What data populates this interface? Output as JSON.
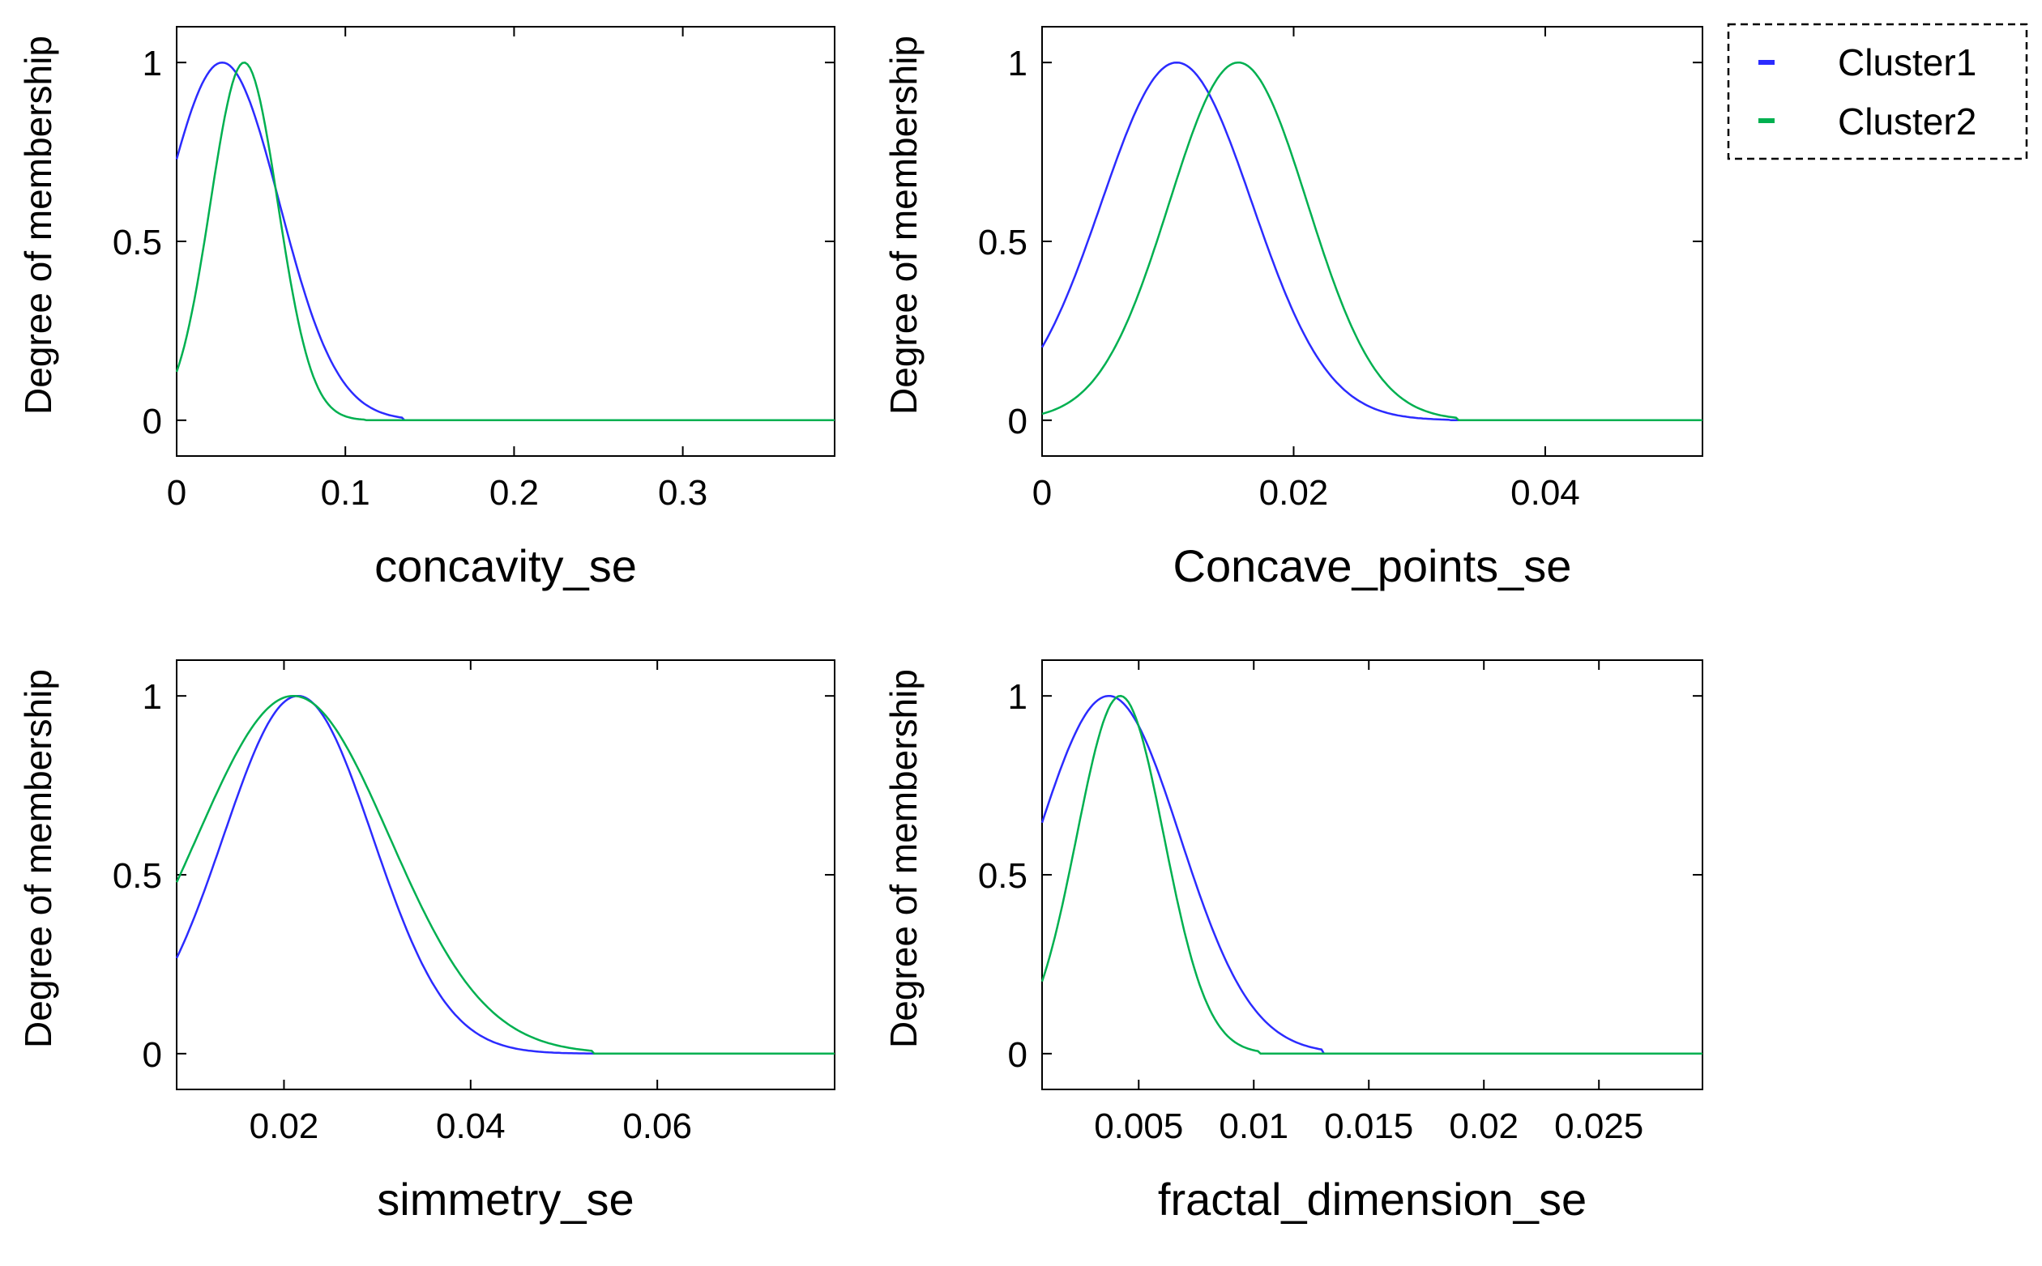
{
  "chart_data": [
    {
      "type": "line",
      "xlabel": "concavity_se",
      "ylabel": "Degree of membership",
      "xlim": [
        0,
        0.39
      ],
      "ylim": [
        -0.1,
        1.1
      ],
      "xticks": [
        0,
        0.1,
        0.2,
        0.3
      ],
      "xtick_labels": [
        "0",
        "0.1",
        "0.2",
        "0.3"
      ],
      "yticks": [
        0,
        0.5,
        1
      ],
      "ytick_labels": [
        "0",
        "0.5",
        "1"
      ],
      "series": [
        {
          "name": "Cluster1",
          "color": "#2b2bff",
          "mu": 0.027,
          "sigma": 0.034,
          "zero_beyond": 0.135
        },
        {
          "name": "Cluster2",
          "color": "#00b050",
          "mu": 0.04,
          "sigma": 0.02,
          "zero_beyond": 0.112
        }
      ]
    },
    {
      "type": "line",
      "xlabel": "Concave_points_se",
      "ylabel": "Degree of membership",
      "xlim": [
        0,
        0.0525
      ],
      "ylim": [
        -0.1,
        1.1
      ],
      "xticks": [
        0,
        0.02,
        0.04
      ],
      "xtick_labels": [
        "0",
        "0.02",
        "0.04"
      ],
      "yticks": [
        0,
        0.5,
        1
      ],
      "ytick_labels": [
        "0",
        "0.5",
        "1"
      ],
      "series": [
        {
          "name": "Cluster1",
          "color": "#2b2bff",
          "mu": 0.0107,
          "sigma": 0.006,
          "zero_beyond": 0.0325
        },
        {
          "name": "Cluster2",
          "color": "#00b050",
          "mu": 0.0156,
          "sigma": 0.0055,
          "zero_beyond": 0.033
        }
      ]
    },
    {
      "type": "line",
      "xlabel": "simmetry_se",
      "ylabel": "Degree of membership",
      "xlim": [
        0.0085,
        0.079
      ],
      "ylim": [
        -0.1,
        1.1
      ],
      "xticks": [
        0.02,
        0.04,
        0.06
      ],
      "xtick_labels": [
        "0.02",
        "0.04",
        "0.06"
      ],
      "yticks": [
        0,
        0.5,
        1
      ],
      "ytick_labels": [
        "0",
        "0.5",
        "1"
      ],
      "series": [
        {
          "name": "Cluster1",
          "color": "#2b2bff",
          "mu": 0.0215,
          "sigma": 0.008,
          "zero_beyond": 0.053
        },
        {
          "name": "Cluster2",
          "color": "#00b050",
          "mu": 0.021,
          "sigma": 0.0103,
          "zero_beyond": 0.053
        }
      ]
    },
    {
      "type": "line",
      "xlabel": "fractal_dimension_se",
      "ylabel": "Degree of membership",
      "xlim": [
        0.0008,
        0.0295
      ],
      "ylim": [
        -0.1,
        1.1
      ],
      "xticks": [
        0.005,
        0.01,
        0.015,
        0.02,
        0.025
      ],
      "xtick_labels": [
        "0.005",
        "0.01",
        "0.015",
        "0.02",
        "0.025"
      ],
      "yticks": [
        0,
        0.5,
        1
      ],
      "ytick_labels": [
        "0",
        "0.5",
        "1"
      ],
      "series": [
        {
          "name": "Cluster1",
          "color": "#2b2bff",
          "mu": 0.0037,
          "sigma": 0.0031,
          "zero_beyond": 0.013
        },
        {
          "name": "Cluster2",
          "color": "#00b050",
          "mu": 0.0042,
          "sigma": 0.0019,
          "zero_beyond": 0.0102
        }
      ]
    }
  ],
  "legend": {
    "entries": [
      {
        "label": "Cluster1",
        "color": "#2b2bff"
      },
      {
        "label": "Cluster2",
        "color": "#00b050"
      }
    ]
  }
}
